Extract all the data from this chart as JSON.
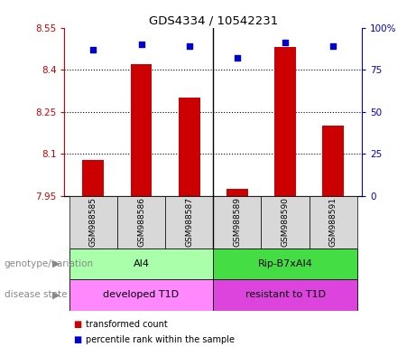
{
  "title": "GDS4334 / 10542231",
  "samples": [
    "GSM988585",
    "GSM988586",
    "GSM988587",
    "GSM988589",
    "GSM988590",
    "GSM988591"
  ],
  "bar_values": [
    8.08,
    8.42,
    8.3,
    7.975,
    8.48,
    8.2
  ],
  "percentile_values": [
    87,
    90,
    89,
    82,
    91,
    89
  ],
  "bar_color": "#cc0000",
  "percentile_color": "#0000cc",
  "ymin": 7.95,
  "ymax": 8.55,
  "yticks": [
    7.95,
    8.1,
    8.25,
    8.4,
    8.55
  ],
  "ytick_labels": [
    "7.95",
    "8.1",
    "8.25",
    "8.4",
    "8.55"
  ],
  "y2min": 0,
  "y2max": 100,
  "y2ticks": [
    0,
    25,
    50,
    75,
    100
  ],
  "y2tick_labels": [
    "0",
    "25",
    "50",
    "75",
    "100%"
  ],
  "grid_values": [
    8.1,
    8.25,
    8.4
  ],
  "genotype_labels": [
    [
      "AI4",
      0,
      2
    ],
    [
      "Rip-B7xAI4",
      3,
      5
    ]
  ],
  "genotype_colors": [
    "#aaffaa",
    "#44dd44"
  ],
  "disease_labels": [
    [
      "developed T1D",
      0,
      2
    ],
    [
      "resistant to T1D",
      3,
      5
    ]
  ],
  "disease_colors": [
    "#ff88ff",
    "#dd44dd"
  ],
  "group_separator": 2.5,
  "legend_red": "transformed count",
  "legend_blue": "percentile rank within the sample",
  "left_label1": "genotype/variation",
  "left_label2": "disease state",
  "bar_width": 0.45,
  "sample_bg": "#d8d8d8",
  "left_label_color": "#888888"
}
